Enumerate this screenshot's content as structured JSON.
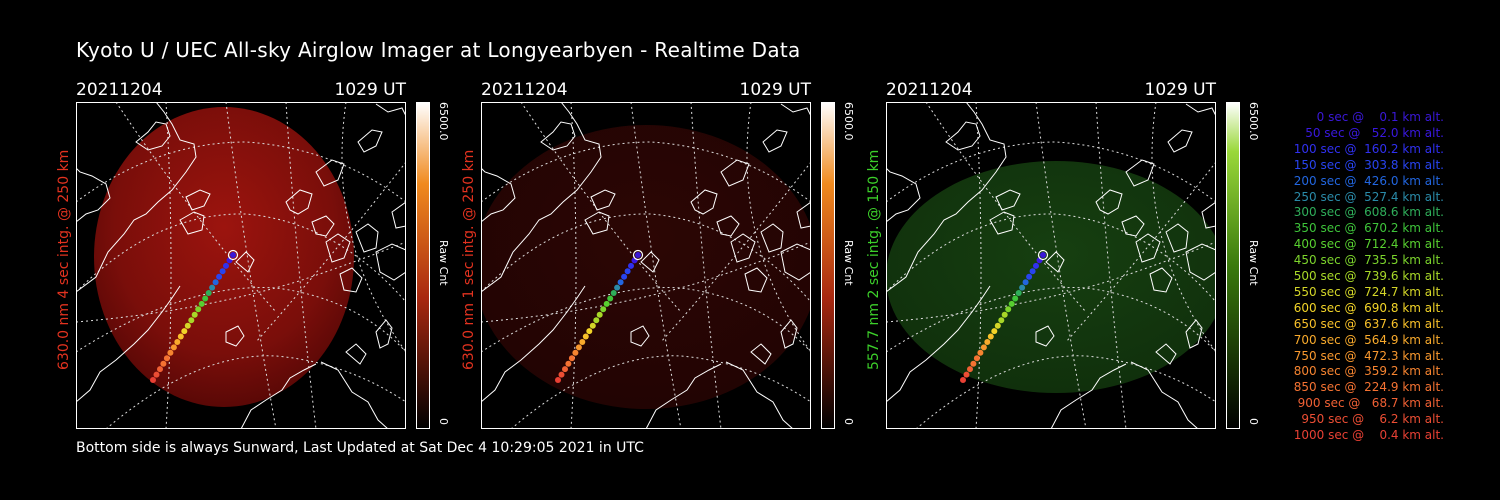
{
  "title": "Kyoto U / UEC All-sky Airglow Imager at Longyearbyen - Realtime Data",
  "footer": "Bottom side is always Sunward, Last Updated at Sat Dec  4 10:29:05 2021 in UTC",
  "colors": {
    "red": "#e2321f",
    "green": "#3ccf2a",
    "background": "#000000"
  },
  "panels": [
    {
      "date": "20211204",
      "time": "1029 UT",
      "side_label": "630.0 nm 4 sec intg. @ 250 km",
      "cb_max": "6500.0",
      "cb_unit": "Raw Cnt",
      "cb_min": "0",
      "theme": "red-bright"
    },
    {
      "date": "20211204",
      "time": "1029 UT",
      "side_label": "630.0 nm 1 sec intg. @ 250 km",
      "cb_max": "6500.0",
      "cb_unit": "Raw Cnt",
      "cb_min": "0",
      "theme": "red-dim"
    },
    {
      "date": "20211204",
      "time": "1029 UT",
      "side_label": "557.7 nm 2 sec intg. @ 150 km",
      "cb_max": "6500.0",
      "cb_unit": "Raw Cnt",
      "cb_min": "0",
      "theme": "green"
    }
  ],
  "legend": [
    {
      "text": "   0 sec @    0.1 km alt.",
      "color": "#3a18d8"
    },
    {
      "text": "  50 sec @   52.0 km alt.",
      "color": "#3a18e0"
    },
    {
      "text": " 100 sec @  160.2 km alt.",
      "color": "#3030f0"
    },
    {
      "text": " 150 sec @  303.8 km alt.",
      "color": "#2844f0"
    },
    {
      "text": " 200 sec @  426.0 km alt.",
      "color": "#2266e0"
    },
    {
      "text": " 250 sec @  527.4 km alt.",
      "color": "#2a8aa8"
    },
    {
      "text": " 300 sec @  608.6 km alt.",
      "color": "#2fae5a"
    },
    {
      "text": " 350 sec @  670.2 km alt.",
      "color": "#3ec43a"
    },
    {
      "text": " 400 sec @  712.4 km alt.",
      "color": "#58d030"
    },
    {
      "text": " 450 sec @  735.5 km alt.",
      "color": "#7cd42c"
    },
    {
      "text": " 500 sec @  739.6 km alt.",
      "color": "#a8d828"
    },
    {
      "text": " 550 sec @  724.7 km alt.",
      "color": "#d4d628"
    },
    {
      "text": " 600 sec @  690.8 km alt.",
      "color": "#f2d428"
    },
    {
      "text": " 650 sec @  637.6 km alt.",
      "color": "#f8c02a"
    },
    {
      "text": " 700 sec @  564.9 km alt.",
      "color": "#f8aa2c"
    },
    {
      "text": " 750 sec @  472.3 km alt.",
      "color": "#f8982e"
    },
    {
      "text": " 800 sec @  359.2 km alt.",
      "color": "#f68430"
    },
    {
      "text": " 850 sec @  224.9 km alt.",
      "color": "#f47232"
    },
    {
      "text": " 900 sec @   68.7 km alt.",
      "color": "#f06034"
    },
    {
      "text": " 950 sec @    6.2 km alt.",
      "color": "#ec4e34"
    },
    {
      "text": "1000 sec @    0.4 km alt.",
      "color": "#e84034"
    }
  ]
}
